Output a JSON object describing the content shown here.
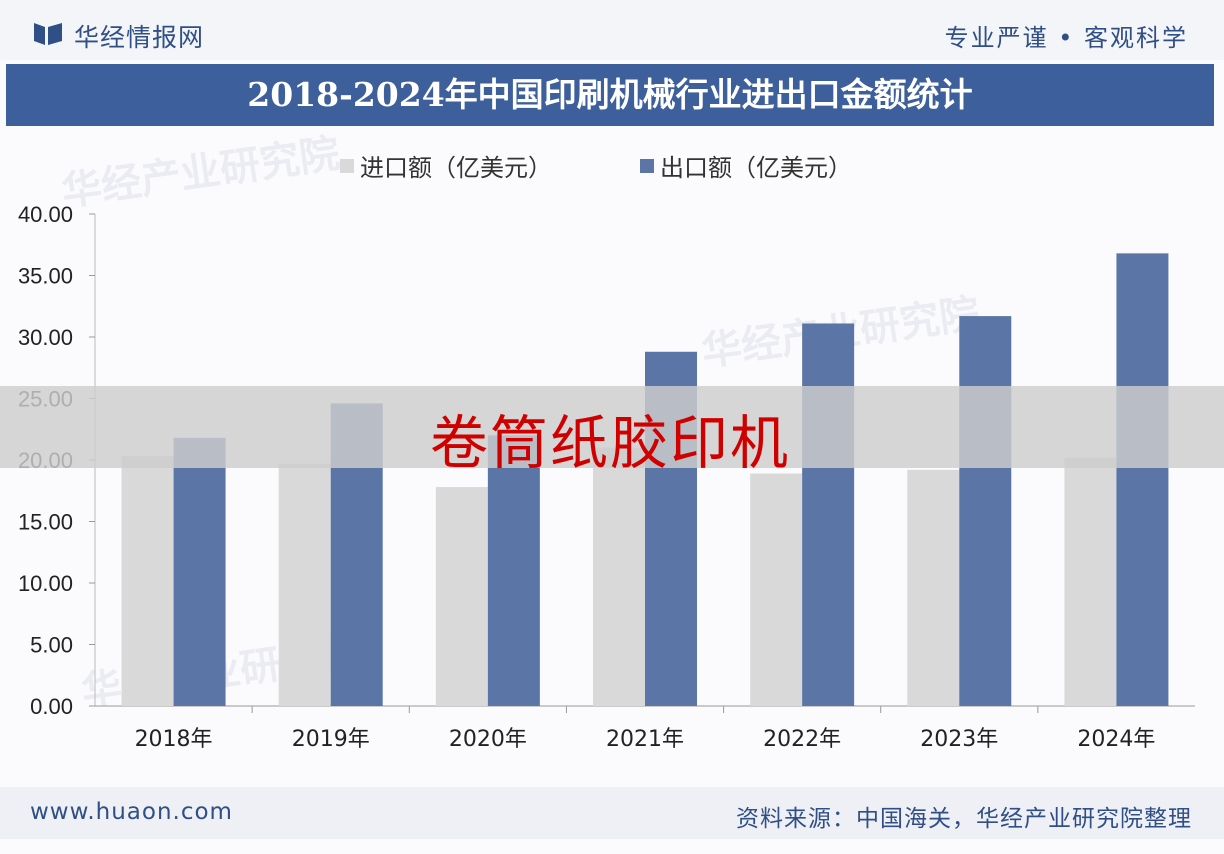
{
  "header": {
    "brand": "华经情报网",
    "tagline": "专业严谨 • 客观科学",
    "title": "2018-2024年中国印刷机械行业进出口金额统计"
  },
  "overlay": {
    "label": "卷筒纸胶印机"
  },
  "watermark": {
    "text": "华经产业研究院",
    "url": "www.huaon.com"
  },
  "footer": {
    "website": "www.huaon.com",
    "source": "资料来源：中国海关，华经产业研究院整理"
  },
  "colors": {
    "import": "#d9d9d9",
    "export": "#5b76a6",
    "title_bg": "#3d5f9b",
    "brand": "#2f4f86"
  },
  "chart_data": {
    "type": "bar",
    "categories": [
      "2018年",
      "2019年",
      "2020年",
      "2021年",
      "2022年",
      "2023年",
      "2024年"
    ],
    "series": [
      {
        "name": "进口额（亿美元）",
        "values": [
          20.3,
          19.7,
          17.8,
          21.0,
          18.9,
          19.2,
          20.2
        ]
      },
      {
        "name": "出口额（亿美元）",
        "values": [
          21.8,
          24.6,
          22.0,
          28.8,
          31.1,
          31.7,
          36.8
        ]
      }
    ],
    "yticks": [
      "0.00",
      "5.00",
      "10.00",
      "15.00",
      "20.00",
      "25.00",
      "30.00",
      "35.00",
      "40.00"
    ],
    "ylim": [
      0,
      40
    ],
    "xlabel": "",
    "ylabel": "",
    "legend": "top",
    "grid": false
  }
}
